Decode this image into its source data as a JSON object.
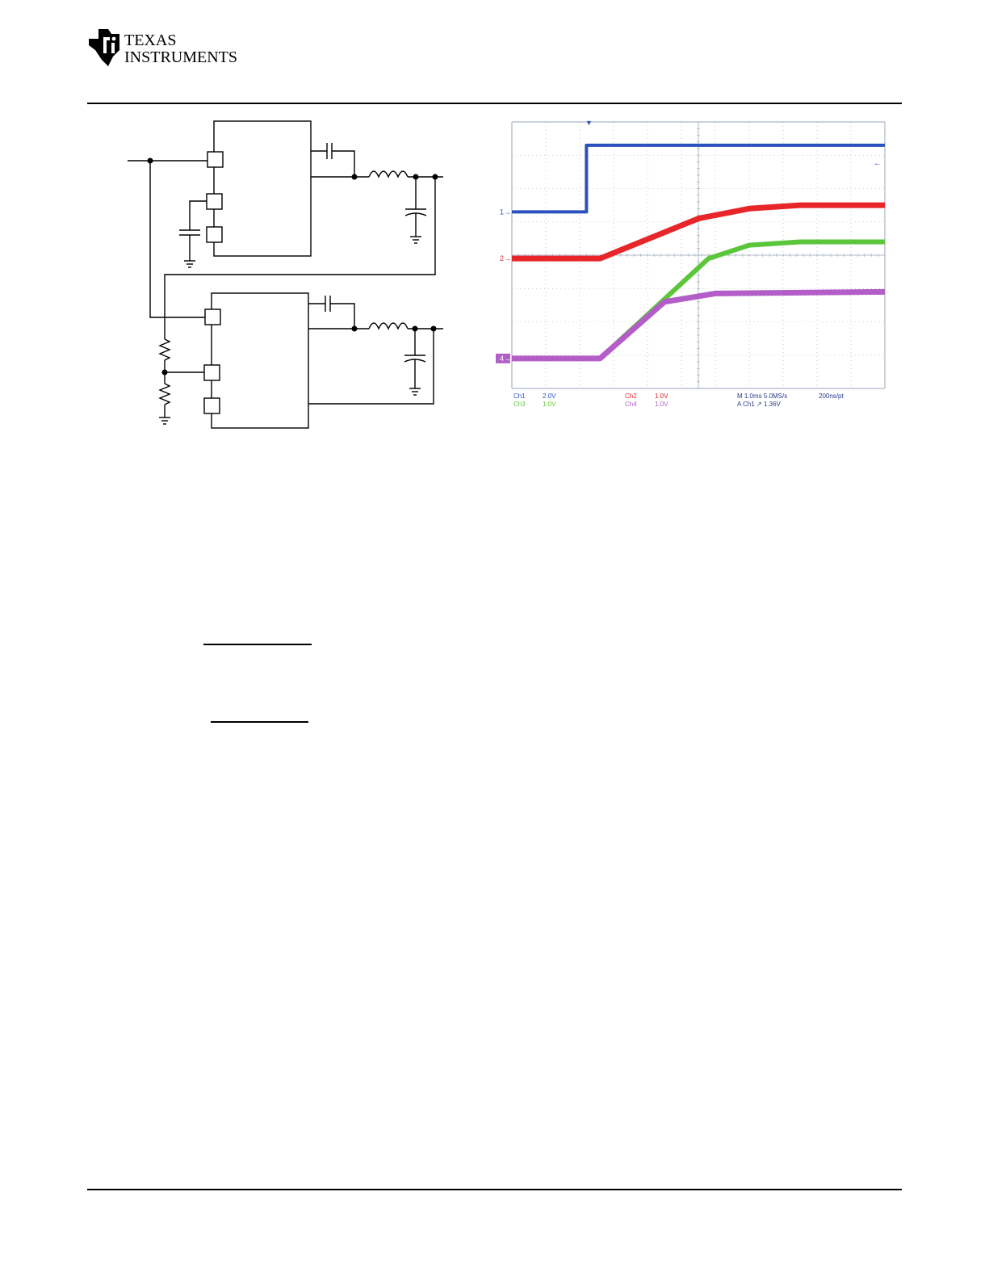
{
  "header": {
    "logo": {
      "line1": "TEXAS",
      "line2": "INSTRUMENTS",
      "icon": "ti-logo-icon"
    }
  },
  "colors": {
    "ch1": "#2a52be",
    "ch2": "#e8262a",
    "ch3": "#5cc63a",
    "ch4": "#b35ec8",
    "grid": "#9aa6b5"
  },
  "chart_data": {
    "type": "line",
    "x_unit": "ms",
    "xlim": [
      0,
      11
    ],
    "grid": true,
    "series": [
      {
        "name": "Ch1",
        "scale": "2.0V",
        "marker": "1",
        "points": [
          [
            0,
            1.3
          ],
          [
            2.2,
            1.3
          ],
          [
            2.2,
            3.3
          ],
          [
            11,
            3.3
          ]
        ]
      },
      {
        "name": "Ch2",
        "scale": "1.0V",
        "marker": "2",
        "points": [
          [
            0,
            -0.1
          ],
          [
            2.6,
            -0.1
          ],
          [
            5.5,
            1.1
          ],
          [
            7,
            1.4
          ],
          [
            8.5,
            1.5
          ],
          [
            11,
            1.5
          ]
        ]
      },
      {
        "name": "Ch3",
        "scale": "1.0V",
        "marker": "",
        "points": [
          [
            0,
            -3.1
          ],
          [
            2.6,
            -3.1
          ],
          [
            5.8,
            -0.1
          ],
          [
            7,
            0.3
          ],
          [
            8.5,
            0.4
          ],
          [
            11,
            0.4
          ]
        ]
      },
      {
        "name": "Ch4",
        "scale": "1.0V",
        "marker": "4",
        "points": [
          [
            0,
            -3.1
          ],
          [
            2.6,
            -3.1
          ],
          [
            4.5,
            -1.4
          ],
          [
            6,
            -1.15
          ],
          [
            11,
            -1.1
          ]
        ]
      }
    ],
    "readouts": {
      "timebase": "M 1.0ms 5.0MS/s",
      "resolution": "200ns/pt",
      "trigger": "A  Ch1  ↗  1.36V"
    }
  }
}
